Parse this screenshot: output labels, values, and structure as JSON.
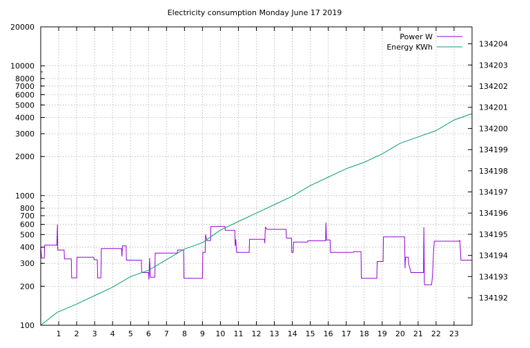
{
  "chart_data": {
    "type": "line",
    "title": "Electricity consumption Monday June 17 2019",
    "xlabel": "",
    "ylabel": "",
    "y2label": "",
    "grid": true,
    "legend_position": "top-right",
    "xlim": [
      0,
      24
    ],
    "x_ticks": [
      1,
      2,
      3,
      4,
      5,
      6,
      7,
      8,
      9,
      10,
      11,
      12,
      13,
      14,
      15,
      16,
      17,
      18,
      19,
      20,
      21,
      22,
      23
    ],
    "y_scale": "log",
    "ylim": [
      100,
      20000
    ],
    "y_ticks": [
      {
        "v": 100,
        "label": "100"
      },
      {
        "v": 200,
        "label": "200"
      },
      {
        "v": 300,
        "label": "300"
      },
      {
        "v": 400,
        "label": "400"
      },
      {
        "v": 500,
        "label": "500"
      },
      {
        "v": 600,
        "label": "600"
      },
      {
        "v": 700,
        "label": "700"
      },
      {
        "v": 800,
        "label": "800"
      },
      {
        "v": 1000,
        "label": "1000"
      },
      {
        "v": 2000,
        "label": "2000"
      },
      {
        "v": 3000,
        "label": "3000"
      },
      {
        "v": 4000,
        "label": "4000"
      },
      {
        "v": 5000,
        "label": "5000"
      },
      {
        "v": 6000,
        "label": "6000"
      },
      {
        "v": 7000,
        "label": "7000"
      },
      {
        "v": 8000,
        "label": "8000"
      },
      {
        "v": 10000,
        "label": "10000"
      },
      {
        "v": 20000,
        "label": "20000"
      }
    ],
    "y2lim": [
      134190.7,
      134204.8
    ],
    "y2_ticks": [
      134192,
      134193,
      134194,
      134195,
      134196,
      134197,
      134198,
      134199,
      134200,
      134201,
      134202,
      134203,
      134204
    ],
    "series": [
      {
        "name": "Power W",
        "axis": "y",
        "color": "#9400d3",
        "points": [
          [
            0,
            400
          ],
          [
            0.05,
            330
          ],
          [
            0.2,
            330
          ],
          [
            0.22,
            415
          ],
          [
            0.9,
            415
          ],
          [
            0.93,
            600
          ],
          [
            0.95,
            380
          ],
          [
            1.3,
            380
          ],
          [
            1.32,
            325
          ],
          [
            1.7,
            325
          ],
          [
            1.72,
            232
          ],
          [
            2.0,
            232
          ],
          [
            2.02,
            335
          ],
          [
            2.95,
            335
          ],
          [
            2.97,
            320
          ],
          [
            3.15,
            320
          ],
          [
            3.17,
            232
          ],
          [
            3.35,
            232
          ],
          [
            3.37,
            390
          ],
          [
            4.5,
            390
          ],
          [
            4.52,
            340
          ],
          [
            4.55,
            410
          ],
          [
            4.75,
            410
          ],
          [
            4.77,
            318
          ],
          [
            5.6,
            318
          ],
          [
            5.62,
            255
          ],
          [
            6.0,
            255
          ],
          [
            6.02,
            225
          ],
          [
            6.06,
            330
          ],
          [
            6.1,
            235
          ],
          [
            6.35,
            235
          ],
          [
            6.37,
            360
          ],
          [
            7.6,
            360
          ],
          [
            7.62,
            380
          ],
          [
            7.95,
            380
          ],
          [
            7.97,
            230
          ],
          [
            9.0,
            230
          ],
          [
            9.02,
            365
          ],
          [
            9.15,
            365
          ],
          [
            9.17,
            500
          ],
          [
            9.25,
            450
          ],
          [
            9.45,
            450
          ],
          [
            9.47,
            578
          ],
          [
            10.25,
            578
          ],
          [
            10.27,
            540
          ],
          [
            10.8,
            540
          ],
          [
            10.82,
            410
          ],
          [
            10.85,
            460
          ],
          [
            10.9,
            365
          ],
          [
            11.6,
            365
          ],
          [
            11.62,
            460
          ],
          [
            12.45,
            460
          ],
          [
            12.47,
            430
          ],
          [
            12.5,
            570
          ],
          [
            12.6,
            550
          ],
          [
            13.65,
            550
          ],
          [
            13.67,
            470
          ],
          [
            13.95,
            470
          ],
          [
            13.97,
            365
          ],
          [
            14.05,
            365
          ],
          [
            14.07,
            438
          ],
          [
            14.85,
            438
          ],
          [
            14.87,
            448
          ],
          [
            15.85,
            448
          ],
          [
            15.87,
            620
          ],
          [
            15.9,
            455
          ],
          [
            16.1,
            455
          ],
          [
            16.12,
            365
          ],
          [
            17.4,
            365
          ],
          [
            17.42,
            370
          ],
          [
            17.82,
            370
          ],
          [
            17.84,
            230
          ],
          [
            18.7,
            230
          ],
          [
            18.72,
            310
          ],
          [
            19.05,
            310
          ],
          [
            19.07,
            480
          ],
          [
            20.25,
            480
          ],
          [
            20.27,
            275
          ],
          [
            20.3,
            335
          ],
          [
            20.45,
            335
          ],
          [
            20.47,
            300
          ],
          [
            20.6,
            255
          ],
          [
            21.3,
            255
          ],
          [
            21.32,
            570
          ],
          [
            21.35,
            205
          ],
          [
            21.75,
            205
          ],
          [
            21.8,
            240
          ],
          [
            21.85,
            350
          ],
          [
            21.9,
            445
          ],
          [
            23.3,
            445
          ],
          [
            23.32,
            455
          ],
          [
            23.38,
            318
          ],
          [
            24,
            318
          ]
        ]
      },
      {
        "name": "Energy KWh",
        "axis": "y2",
        "color": "#009e73",
        "points": [
          [
            0,
            134190.7
          ],
          [
            0.3,
            134190.9
          ],
          [
            0.9,
            134191.3
          ],
          [
            2.0,
            134191.7
          ],
          [
            3.0,
            134192.1
          ],
          [
            4.0,
            134192.5
          ],
          [
            5.0,
            134193.0
          ],
          [
            6.0,
            134193.3
          ],
          [
            7.0,
            134193.8
          ],
          [
            8.0,
            134194.3
          ],
          [
            9.0,
            134194.6
          ],
          [
            10.0,
            134195.2
          ],
          [
            11.0,
            134195.6
          ],
          [
            12.0,
            134196.0
          ],
          [
            13.0,
            134196.4
          ],
          [
            14.0,
            134196.8
          ],
          [
            15.0,
            134197.3
          ],
          [
            16.0,
            134197.7
          ],
          [
            17.0,
            134198.1
          ],
          [
            18.0,
            134198.4
          ],
          [
            19.0,
            134198.8
          ],
          [
            20.0,
            134199.3
          ],
          [
            21.0,
            134199.6
          ],
          [
            22.0,
            134199.9
          ],
          [
            23.0,
            134200.4
          ],
          [
            24.0,
            134200.7
          ]
        ]
      }
    ]
  }
}
